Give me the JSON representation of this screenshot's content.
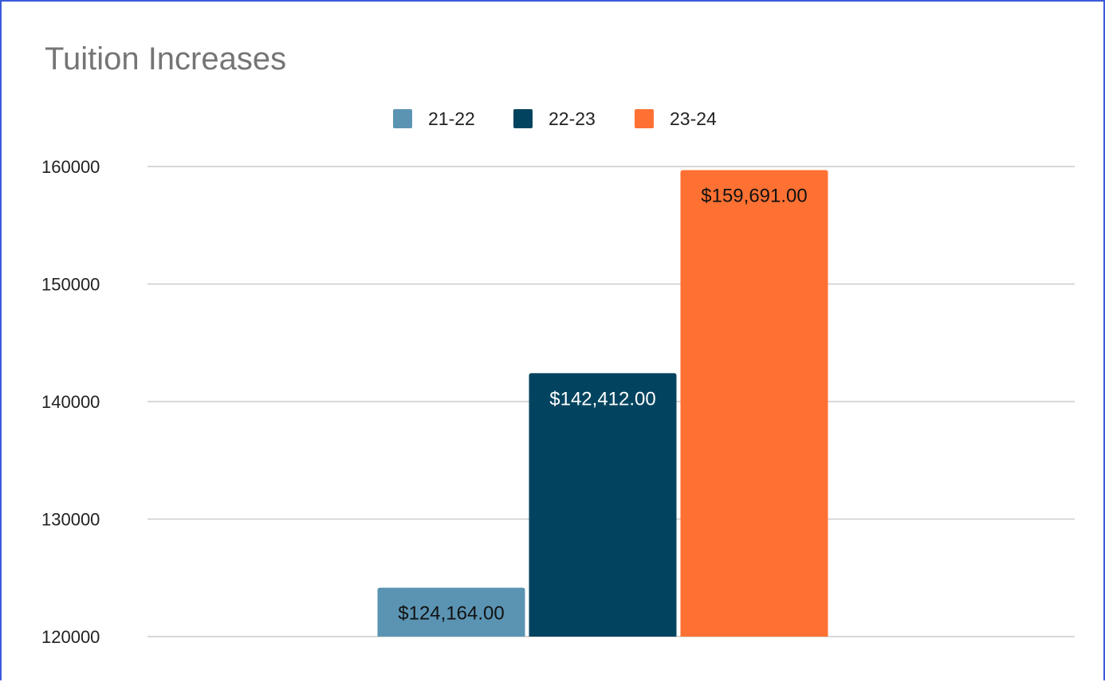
{
  "chart_data": {
    "type": "bar",
    "title": "Tuition Increases",
    "xlabel": "",
    "ylabel": "",
    "ylim": [
      120000,
      160000
    ],
    "yticks": [
      120000,
      130000,
      140000,
      150000,
      160000
    ],
    "ytick_labels": [
      "120000",
      "130000",
      "140000",
      "150000",
      "160000"
    ],
    "grid": true,
    "legend_position": "top",
    "series": [
      {
        "name": "21-22",
        "value": 124164,
        "data_label": "$124,164.00",
        "color": "#5b94b3",
        "label_color": "#111111"
      },
      {
        "name": "22-23",
        "value": 142412,
        "data_label": "$142,412.00",
        "color": "#02445f",
        "label_color": "#ffffff"
      },
      {
        "name": "23-24",
        "value": 159691,
        "data_label": "$159,691.00",
        "color": "#ff7133",
        "label_color": "#111111"
      }
    ]
  }
}
